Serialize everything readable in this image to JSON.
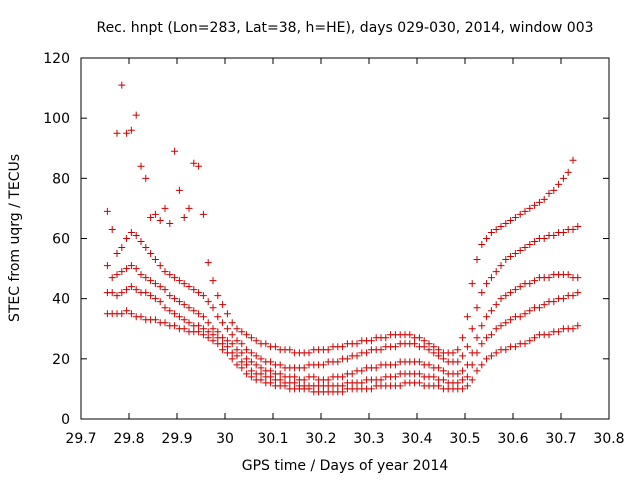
{
  "chart_data": {
    "type": "scatter",
    "title": "Rec. hnpt (Lon=283, Lat=38, h=HE), days 029-030, 2014, window 003",
    "xlabel": "GPS time / Days of year 2014",
    "ylabel": "STEC from uqrg / TECUs",
    "xlim": [
      29.7,
      30.8
    ],
    "ylim": [
      0,
      120
    ],
    "xticks": [
      "29.7",
      "29.8",
      "29.9",
      "30",
      "30.1",
      "30.2",
      "30.3",
      "30.4",
      "30.5",
      "30.6",
      "30.7",
      "30.8"
    ],
    "yticks": [
      "0",
      "20",
      "40",
      "60",
      "80",
      "100",
      "120"
    ],
    "marker": "+",
    "color": "#cc0000",
    "grid": false,
    "legend": "none",
    "series": [
      {
        "x": [
          29.755,
          29.765,
          29.775,
          29.785,
          29.795,
          29.805,
          29.815,
          29.825,
          29.835,
          29.845,
          29.855,
          29.865,
          29.875,
          29.885,
          29.895,
          29.905,
          29.915,
          29.925,
          29.935,
          29.945,
          29.955,
          29.965,
          29.975,
          29.985,
          29.995,
          30.005,
          30.015,
          30.025,
          30.035,
          30.045,
          30.055,
          30.065,
          30.075,
          30.085,
          30.095,
          30.105,
          30.115,
          30.125,
          30.135,
          30.145,
          30.155,
          30.165,
          30.175,
          30.185,
          30.195,
          30.205,
          30.215,
          30.225,
          30.235,
          30.245,
          30.255,
          30.265,
          30.275,
          30.285,
          30.295,
          30.305,
          30.315,
          30.325,
          30.335,
          30.345,
          30.355,
          30.365,
          30.375,
          30.385,
          30.395,
          30.405,
          30.415,
          30.425,
          30.435,
          30.445,
          30.455,
          30.465,
          30.475,
          30.485,
          30.495,
          30.505,
          30.515,
          30.525,
          30.535,
          30.545,
          30.555,
          30.565,
          30.575,
          30.585,
          30.595,
          30.605,
          30.615,
          30.625,
          30.635,
          30.645,
          30.655,
          30.665,
          30.675,
          30.685,
          30.695,
          30.705,
          30.715,
          30.725,
          30.735
        ],
        "y": [
          35,
          35,
          35,
          35,
          36,
          35,
          34,
          34,
          33,
          33,
          33,
          32,
          32,
          31,
          31,
          30,
          30,
          29,
          29,
          29,
          28,
          27,
          26,
          25,
          23,
          22,
          20,
          18,
          17,
          15,
          14,
          13,
          13,
          12,
          12,
          11,
          11,
          11,
          10,
          10,
          10,
          10,
          10,
          9,
          9,
          9,
          9,
          9,
          9,
          9,
          10,
          10,
          10,
          10,
          10,
          10,
          11,
          11,
          11,
          11,
          11,
          11,
          12,
          12,
          12,
          12,
          11,
          11,
          11,
          11,
          10,
          10,
          10,
          10,
          10,
          11,
          13,
          16,
          18,
          20,
          21,
          22,
          23,
          23,
          24,
          24,
          25,
          25,
          26,
          27,
          28,
          28,
          28,
          29,
          29,
          30,
          30,
          30,
          31
        ]
      },
      {
        "x": [
          29.755,
          29.765,
          29.775,
          29.785,
          29.795,
          29.805,
          29.815,
          29.825,
          29.835,
          29.845,
          29.855,
          29.865,
          29.875,
          29.885,
          29.895,
          29.905,
          29.915,
          29.925,
          29.935,
          29.945,
          29.955,
          29.965,
          29.975,
          29.985,
          29.995,
          30.005,
          30.015,
          30.025,
          30.035,
          30.045,
          30.055,
          30.065,
          30.075,
          30.085,
          30.095,
          30.105,
          30.115,
          30.125,
          30.135,
          30.145,
          30.155,
          30.165,
          30.175,
          30.185,
          30.195,
          30.205,
          30.215,
          30.225,
          30.235,
          30.245,
          30.255,
          30.265,
          30.275,
          30.285,
          30.295,
          30.305,
          30.315,
          30.325,
          30.335,
          30.345,
          30.355,
          30.365,
          30.375,
          30.385,
          30.395,
          30.405,
          30.415,
          30.425,
          30.435,
          30.445,
          30.455,
          30.465,
          30.475,
          30.485,
          30.495,
          30.505,
          30.515,
          30.525,
          30.535,
          30.545,
          30.555,
          30.565,
          30.575,
          30.585,
          30.595,
          30.605,
          30.615,
          30.625,
          30.635,
          30.645,
          30.655,
          30.665,
          30.675,
          30.685,
          30.695,
          30.705,
          30.715,
          30.725,
          30.735
        ],
        "y": [
          42,
          42,
          41,
          42,
          43,
          44,
          43,
          42,
          42,
          41,
          40,
          39,
          37,
          36,
          35,
          34,
          33,
          32,
          31,
          31,
          30,
          29,
          28,
          27,
          25,
          24,
          22,
          21,
          19,
          18,
          16,
          15,
          15,
          14,
          14,
          13,
          13,
          12,
          12,
          12,
          11,
          11,
          11,
          11,
          11,
          11,
          11,
          11,
          11,
          11,
          12,
          12,
          12,
          12,
          13,
          13,
          13,
          13,
          14,
          14,
          14,
          15,
          15,
          15,
          15,
          15,
          14,
          14,
          14,
          13,
          13,
          12,
          12,
          12,
          13,
          14,
          18,
          22,
          25,
          27,
          28,
          30,
          31,
          32,
          33,
          34,
          34,
          35,
          36,
          37,
          37,
          38,
          39,
          39,
          40,
          40,
          41,
          41,
          42
        ]
      },
      {
        "x": [
          29.755,
          29.765,
          29.775,
          29.785,
          29.795,
          29.805,
          29.815,
          29.825,
          29.835,
          29.845,
          29.855,
          29.865,
          29.875,
          29.885,
          29.895,
          29.905,
          29.915,
          29.925,
          29.935,
          29.945,
          29.955,
          29.965,
          29.975,
          29.985,
          29.995,
          30.005,
          30.015,
          30.025,
          30.035,
          30.045,
          30.055,
          30.065,
          30.075,
          30.085,
          30.095,
          30.105,
          30.115,
          30.125,
          30.135,
          30.145,
          30.155,
          30.165,
          30.175,
          30.185,
          30.195,
          30.205,
          30.215,
          30.225,
          30.235,
          30.245,
          30.255,
          30.265,
          30.275,
          30.285,
          30.295,
          30.305,
          30.315,
          30.325,
          30.335,
          30.345,
          30.355,
          30.365,
          30.375,
          30.385,
          30.395,
          30.405,
          30.415,
          30.425,
          30.435,
          30.445,
          30.455,
          30.465,
          30.475,
          30.485,
          30.495,
          30.505,
          30.515,
          30.525,
          30.535,
          30.545,
          30.555,
          30.565,
          30.575,
          30.585,
          30.595,
          30.605,
          30.615,
          30.625,
          30.635,
          30.645,
          30.655,
          30.665,
          30.675,
          30.685,
          30.695,
          30.705,
          30.715,
          30.725,
          30.735
        ],
        "y": [
          51,
          47,
          48,
          49,
          50,
          51,
          50,
          48,
          47,
          46,
          45,
          44,
          43,
          41,
          40,
          39,
          38,
          37,
          36,
          35,
          34,
          32,
          30,
          29,
          27,
          26,
          25,
          23,
          22,
          20,
          19,
          18,
          17,
          16,
          16,
          15,
          15,
          14,
          14,
          14,
          13,
          13,
          14,
          14,
          13,
          13,
          13,
          14,
          14,
          14,
          15,
          15,
          16,
          16,
          17,
          17,
          17,
          18,
          18,
          18,
          18,
          19,
          19,
          19,
          19,
          19,
          18,
          18,
          17,
          17,
          16,
          15,
          15,
          15,
          16,
          18,
          22,
          27,
          31,
          34,
          36,
          38,
          40,
          41,
          42,
          43,
          44,
          45,
          45,
          46,
          47,
          47,
          47,
          48,
          48,
          48,
          48,
          47,
          47
        ]
      },
      {
        "x": [
          29.755,
          29.765,
          29.775,
          29.785,
          29.795,
          29.805,
          29.815,
          29.825,
          29.835,
          29.845,
          29.855,
          29.865,
          29.875,
          29.885,
          29.895,
          29.905,
          29.915,
          29.925,
          29.935,
          29.945,
          29.955,
          29.965,
          29.975,
          29.985,
          29.995,
          30.005,
          30.015,
          30.025,
          30.035,
          30.045,
          30.055,
          30.065,
          30.075,
          30.085,
          30.095,
          30.105,
          30.115,
          30.125,
          30.135,
          30.145,
          30.155,
          30.165,
          30.175,
          30.185,
          30.195,
          30.205,
          30.215,
          30.225,
          30.235,
          30.245,
          30.255,
          30.265,
          30.275,
          30.285,
          30.295,
          30.305,
          30.315,
          30.325,
          30.335,
          30.345,
          30.355,
          30.365,
          30.375,
          30.385,
          30.395,
          30.405,
          30.415,
          30.425,
          30.435,
          30.445,
          30.455,
          30.465,
          30.475,
          30.485,
          30.495,
          30.505,
          30.515,
          30.525,
          30.535,
          30.545,
          30.555,
          30.565,
          30.575,
          30.585,
          30.595,
          30.605,
          30.615,
          30.625,
          30.635,
          30.645,
          30.655,
          30.665,
          30.675,
          30.685,
          30.695,
          30.705,
          30.715,
          30.725,
          30.735
        ],
        "y": [
          69,
          63,
          55,
          57,
          60,
          62,
          61,
          59,
          57,
          55,
          53,
          51,
          49,
          48,
          47,
          46,
          45,
          44,
          43,
          42,
          41,
          39,
          37,
          34,
          32,
          30,
          28,
          26,
          25,
          23,
          22,
          21,
          20,
          19,
          19,
          18,
          18,
          17,
          17,
          17,
          17,
          17,
          18,
          18,
          18,
          18,
          19,
          19,
          19,
          20,
          20,
          21,
          21,
          22,
          22,
          23,
          23,
          23,
          24,
          24,
          24,
          25,
          25,
          25,
          25,
          24,
          24,
          23,
          22,
          21,
          20,
          19,
          19,
          19,
          21,
          24,
          30,
          37,
          42,
          45,
          47,
          49,
          51,
          53,
          54,
          55,
          56,
          57,
          58,
          59,
          60,
          60,
          61,
          61,
          62,
          62,
          63,
          63,
          64
        ]
      },
      {
        "x": [
          29.755,
          29.765,
          29.775,
          29.785,
          29.795,
          29.805,
          29.815,
          29.825,
          29.835,
          29.845,
          29.855,
          29.865,
          29.875,
          29.885,
          29.895,
          29.905,
          29.915,
          29.925,
          29.935,
          29.945,
          29.955,
          29.965,
          29.975,
          29.985,
          29.995,
          30.005,
          30.015,
          30.025,
          30.035,
          30.045,
          30.055,
          30.065,
          30.075,
          30.085,
          30.095,
          30.105,
          30.115,
          30.125,
          30.135,
          30.145,
          30.155,
          30.165,
          30.175,
          30.185,
          30.195,
          30.205,
          30.215,
          30.225,
          30.235,
          30.245,
          30.255,
          30.265,
          30.275,
          30.285,
          30.295,
          30.305,
          30.315,
          30.325,
          30.335,
          30.345,
          30.355,
          30.365,
          30.375,
          30.385,
          30.395,
          30.405,
          30.415,
          30.425,
          30.435,
          30.445,
          30.455,
          30.465,
          30.475,
          30.485,
          30.495,
          30.505,
          30.515,
          30.525,
          30.535,
          30.545,
          30.555,
          30.565,
          30.575,
          30.585,
          30.595,
          30.605,
          30.615,
          30.625,
          30.635,
          30.645,
          30.655,
          30.665,
          30.675,
          30.685,
          30.695,
          30.705,
          30.715,
          30.725,
          30.735
        ],
        "y": [
          null,
          null,
          95,
          111,
          95,
          96,
          101,
          84,
          80,
          67,
          68,
          66,
          70,
          65,
          89,
          76,
          67,
          70,
          85,
          84,
          68,
          52,
          46,
          41,
          38,
          35,
          32,
          30,
          29,
          28,
          27,
          26,
          25,
          25,
          24,
          24,
          23,
          23,
          23,
          22,
          22,
          22,
          22,
          23,
          23,
          23,
          23,
          24,
          24,
          24,
          25,
          25,
          25,
          26,
          26,
          26,
          27,
          27,
          27,
          28,
          28,
          28,
          28,
          28,
          27,
          27,
          26,
          25,
          24,
          23,
          22,
          22,
          22,
          23,
          27,
          34,
          45,
          53,
          58,
          60,
          62,
          63,
          64,
          65,
          66,
          67,
          68,
          69,
          70,
          71,
          72,
          73,
          75,
          76,
          78,
          80,
          82,
          86,
          null
        ]
      }
    ]
  }
}
